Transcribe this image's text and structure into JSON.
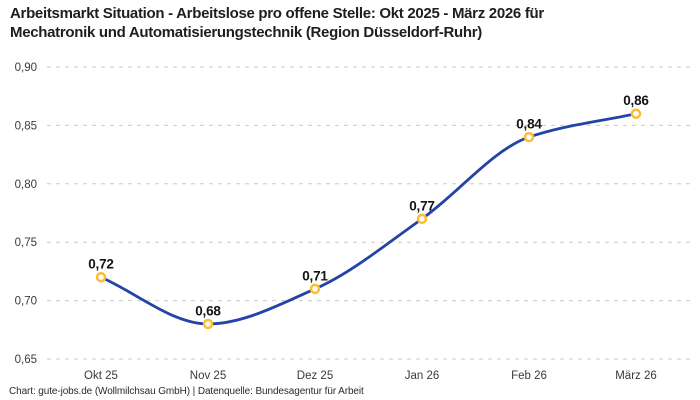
{
  "title": {
    "line1": "Arbeitsmarkt Situation - Arbeitslose pro offene Stelle: Okt 2025 - März 2026 für",
    "line2": "Mechatronik und Automatisierungstechnik (Region Düsseldorf-Ruhr)"
  },
  "footer": "Chart: gute-jobs.de (Wollmilchsau GmbH) | Datenquelle: Bundesagentur für Arbeit",
  "chart_data": {
    "type": "line",
    "title": "Arbeitsmarkt Situation - Arbeitslose pro offene Stelle: Okt 2025 - März 2026 für Mechatronik und Automatisierungstechnik (Region Düsseldorf-Ruhr)",
    "categories": [
      "Okt 25",
      "Nov 25",
      "Dez 25",
      "Jan 26",
      "Feb 26",
      "März 26"
    ],
    "values": [
      0.72,
      0.68,
      0.71,
      0.77,
      0.84,
      0.86
    ],
    "value_labels": [
      "0,72",
      "0,68",
      "0,71",
      "0,77",
      "0,84",
      "0,86"
    ],
    "xlabel": "",
    "ylabel": "",
    "ylim": [
      0.65,
      0.9
    ],
    "ytick_step": 0.05,
    "ytick_labels_top_to_bottom": [
      "0,90",
      "0,85",
      "0,80",
      "0,75",
      "0,70",
      "0,65"
    ],
    "grid": "horizontal-dashed",
    "legend": "none",
    "line_style": "smooth-spline",
    "marker_style": "open-circle",
    "colors": {
      "line": "#2343A7",
      "marker_ring": "#FCBE2D",
      "marker_fill": "#FFFFFF",
      "gridline": "#C9C9C9",
      "axis_text": "#3A3A3A",
      "data_label": "#141414"
    }
  }
}
